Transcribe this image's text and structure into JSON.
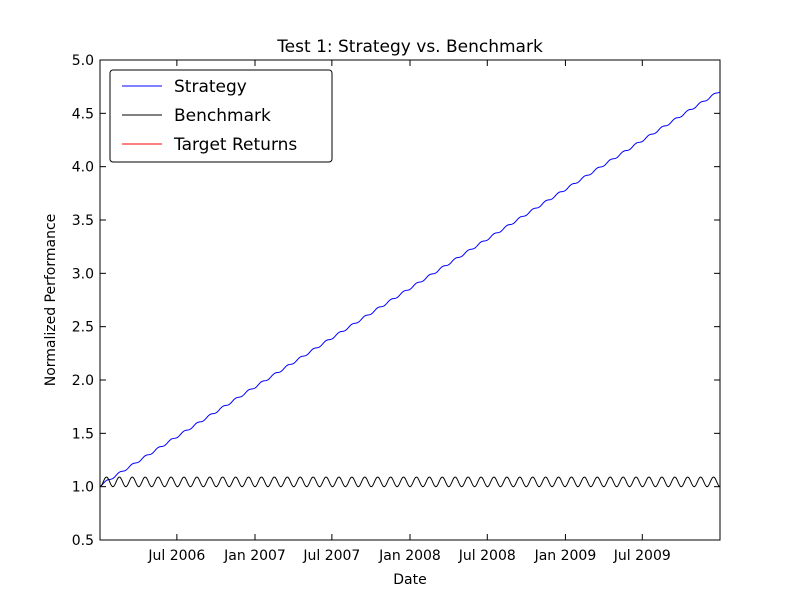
{
  "chart_data": {
    "type": "line",
    "title": "Test 1: Strategy vs. Benchmark",
    "xlabel": "Date",
    "ylabel": "Normalized Performance",
    "xlim": [
      "2006-01-01",
      "2009-12-31"
    ],
    "ylim": [
      0.5,
      5.0
    ],
    "grid": false,
    "legend_position": "top-left",
    "x_ticks": [
      {
        "date": "2006-07-01",
        "label": "Jul 2006"
      },
      {
        "date": "2007-01-01",
        "label": "Jan 2007"
      },
      {
        "date": "2007-07-01",
        "label": "Jul 2007"
      },
      {
        "date": "2008-01-01",
        "label": "Jan 2008"
      },
      {
        "date": "2008-07-01",
        "label": "Jul 2008"
      },
      {
        "date": "2009-01-01",
        "label": "Jan 2009"
      },
      {
        "date": "2009-07-01",
        "label": "Jul 2009"
      }
    ],
    "y_ticks": [
      {
        "value": 0.5,
        "label": "0.5"
      },
      {
        "value": 1.0,
        "label": "1.0"
      },
      {
        "value": 1.5,
        "label": "1.5"
      },
      {
        "value": 2.0,
        "label": "2.0"
      },
      {
        "value": 2.5,
        "label": "2.5"
      },
      {
        "value": 3.0,
        "label": "3.0"
      },
      {
        "value": 3.5,
        "label": "3.5"
      },
      {
        "value": 4.0,
        "label": "4.0"
      },
      {
        "value": 4.5,
        "label": "4.5"
      },
      {
        "value": 5.0,
        "label": "5.0"
      }
    ],
    "series": [
      {
        "name": "Strategy",
        "color": "#0000ff",
        "x": [
          "2006-01-01",
          "2009-12-31"
        ],
        "y": [
          1.0,
          4.7
        ],
        "ripple_amplitude": 0.02,
        "ripple_cycles": 48
      },
      {
        "name": "Benchmark",
        "color": "#000000",
        "x": [
          "2006-01-01",
          "2009-12-31"
        ],
        "y": [
          1.0,
          1.0
        ],
        "ripple_amplitude": 0.09,
        "ripple_cycles": 48
      },
      {
        "name": "Target Returns",
        "color": "#ff0000",
        "x": [],
        "y": []
      }
    ]
  }
}
